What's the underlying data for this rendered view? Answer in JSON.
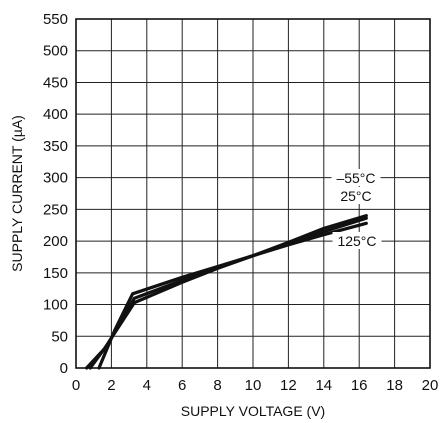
{
  "chart_data": {
    "type": "line",
    "title": "",
    "xlabel": "SUPPLY VOLTAGE (V)",
    "ylabel": "SUPPLY CURRENT (µA)",
    "xlim": [
      0,
      20
    ],
    "ylim": [
      0,
      550
    ],
    "x_ticks": [
      "0",
      "2",
      "4",
      "6",
      "8",
      "10",
      "12",
      "14",
      "16",
      "18",
      "20"
    ],
    "y_ticks": [
      "0",
      "50",
      "100",
      "150",
      "200",
      "250",
      "300",
      "350",
      "400",
      "450",
      "500",
      "550"
    ],
    "grid": true,
    "series": [
      {
        "name": "–55°C",
        "x": [
          0.6,
          1.6,
          3.3,
          6,
          8,
          10,
          12,
          14,
          16.4
        ],
        "y": [
          0,
          30,
          103,
          135,
          157,
          177,
          198,
          220,
          240
        ]
      },
      {
        "name": "25°C",
        "x": [
          0.8,
          1.8,
          3.3,
          6,
          8,
          10,
          12,
          14,
          16.4
        ],
        "y": [
          0,
          38,
          110,
          138,
          158,
          177,
          196,
          215,
          236
        ]
      },
      {
        "name": "125°C",
        "x": [
          1.3,
          2.2,
          3.2,
          6,
          8,
          10,
          12,
          14,
          16.4
        ],
        "y": [
          0,
          60,
          117,
          143,
          160,
          177,
          194,
          210,
          228
        ]
      }
    ]
  }
}
